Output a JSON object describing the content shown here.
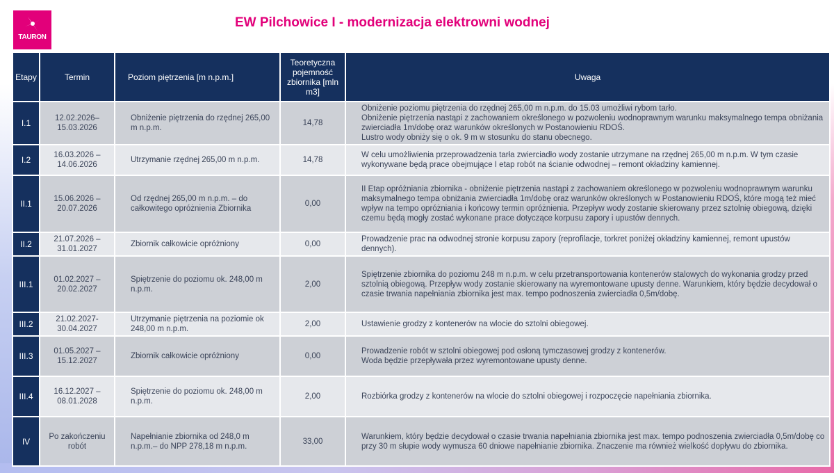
{
  "logo": {
    "brand": "TAURON",
    "color": "#e2007a"
  },
  "title": "EW Pilchowice I - modernizacja elektrowni wodnej",
  "table": {
    "headers": {
      "etapy": "Etapy",
      "termin": "Termin",
      "poziom": "Poziom piętrzenia [m n.p.m.]",
      "pojemnosc": "Teoretyczna pojemność zbiornika [mln m3]",
      "uwaga": "Uwaga"
    },
    "rows": [
      {
        "etap": "I.1",
        "termin": "12.02.2026–\n15.03.2026",
        "poziom": "Obniżenie piętrzenia do rzędnej 265,00 m n.p.m.",
        "pojemnosc": "14,78",
        "uwaga": "Obniżenie poziomu piętrzenia do rzędnej 265,00 m n.p.m. do 15.03 umożliwi rybom tarło.\nObniżenie piętrzenia nastąpi z zachowaniem określonego w pozwoleniu wodnoprawnym warunku maksymalnego tempa obniżania zwierciadła 1m/dobę oraz  warunków określonych w Postanowieniu RDOŚ.\nLustro wody obniży się o ok. 9 m w stosunku do stanu obecnego."
      },
      {
        "etap": "I.2",
        "termin": "16.03.2026 –\n14.06.2026",
        "poziom": "Utrzymanie rzędnej 265,00 m n.p.m.",
        "pojemnosc": "14,78",
        "uwaga": "W celu umożliwienia przeprowadzenia tarła zwierciadło wody zostanie utrzymane na rzędnej 265,00 m n.p.m. W tym czasie wykonywane będą prace obejmujące I etap robót na ścianie odwodnej – remont okładziny kamiennej."
      },
      {
        "etap": "II.1",
        "termin": "15.06.2026 –\n20.07.2026",
        "poziom": "Od rzędnej 265,00 m n.p.m. – do całkowitego opróżnienia Zbiornika",
        "pojemnosc": "0,00",
        "uwaga": "II Etap opróżniania zbiornika  - obniżenie piętrzenia nastąpi z zachowaniem określonego w pozwoleniu wodnoprawnym warunku maksymalnego tempa obniżania zwierciadła 1m/dobę oraz warunków określonych w Postanowieniu RDOŚ, które mogą też mieć wpływ na tempo opróżniania i końcowy termin  opróżnienia. Przepływ wody zostanie skierowany przez sztolnię obiegową, dzięki czemu  będą mogły zostać wykonane prace dotyczące korpusu zapory i upustów dennych."
      },
      {
        "etap": "II.2",
        "termin": "21.07.2026 –\n31.01.2027",
        "poziom": "Zbiornik całkowicie opróżniony",
        "pojemnosc": "0,00",
        "uwaga": "Prowadzenie prac na odwodnej stronie korpusu zapory (reprofilacje, torkret poniżej okładziny kamiennej, remont upustów dennych)."
      },
      {
        "etap": "III.1",
        "termin": "01.02.2027 –\n20.02.2027",
        "poziom": "Spiętrzenie do poziomu ok. 248,00 m n.p.m.",
        "pojemnosc": "2,00",
        "uwaga": "Spiętrzenie zbiornika do poziomu 248 m n.p.m. w celu przetransportowania kontenerów stalowych do wykonania grodzy przed sztolnią obiegową. Przepływ wody zostanie skierowany na wyremontowane upusty denne. Warunkiem, który będzie decydował o czasie trwania napełniania zbiornika jest max. tempo podnoszenia zwierciadła 0,5m/dobę."
      },
      {
        "etap": "III.2",
        "termin": "21.02.2027-\n30.04.2027",
        "poziom": "Utrzymanie piętrzenia na poziomie ok 248,00 m n.p.m.",
        "pojemnosc": "2,00",
        "uwaga": "Ustawienie grodzy z kontenerów na wlocie do sztolni obiegowej."
      },
      {
        "etap": "III.3",
        "termin": "01.05.2027 –\n15.12.2027",
        "poziom": "Zbiornik całkowicie opróżniony",
        "pojemnosc": "0,00",
        "uwaga": "Prowadzenie robót w sztolni obiegowej pod osłoną tymczasowej grodzy z kontenerów.\nWoda będzie przepływała przez wyremontowane upusty denne."
      },
      {
        "etap": "III.4",
        "termin": "16.12.2027 –\n08.01.2028",
        "poziom": "Spiętrzenie do poziomu ok. 248,00 m n.p.m.",
        "pojemnosc": "2,00",
        "uwaga": "Rozbiórka grodzy z kontenerów na wlocie do sztolni obiegowej i rozpoczęcie napełniania zbiornika."
      },
      {
        "etap": "IV",
        "termin": "Po zakończeniu robót",
        "poziom": "Napełnianie zbiornika od 248,0 m n.p.m.– do NPP 278,18 m n.p.m.",
        "pojemnosc": "33,00",
        "uwaga": "Warunkiem, który będzie decydował o czasie trwania napełniania zbiornika jest max. tempo podnoszenia zwierciadła 0,5m/dobę co przy 30 m słupie wody wymusza 60 dniowe napełnianie zbiornika. Znaczenie ma również wielkość dopływu do zbiornika."
      }
    ]
  },
  "colors": {
    "header_bg": "#15305e",
    "row_dark": "#cdd0d6",
    "row_light": "#e6e8ec",
    "accent": "#e2007a"
  }
}
